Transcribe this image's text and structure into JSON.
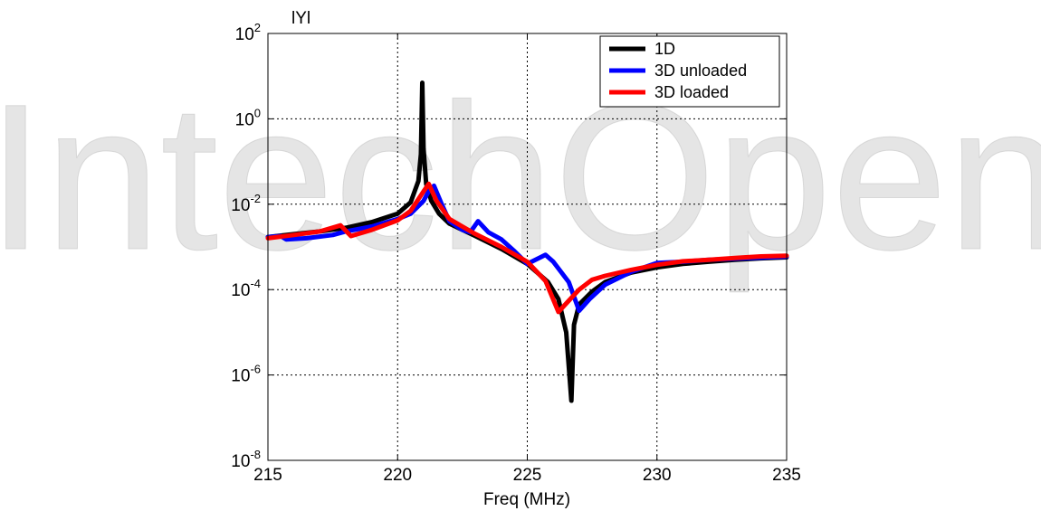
{
  "watermark": {
    "text": "IntechOpen",
    "color": "#cfcfcf"
  },
  "chart_data": {
    "type": "line",
    "xlabel": "Freq (MHz)",
    "ylabel": "lYl",
    "xlim": [
      215,
      235
    ],
    "ylim": [
      1e-08,
      100
    ],
    "y_scale": "log",
    "grid": true,
    "legend_position": "top-right",
    "x_ticks": [
      {
        "value": 215,
        "label": "215"
      },
      {
        "value": 220,
        "label": "220"
      },
      {
        "value": 225,
        "label": "225"
      },
      {
        "value": 230,
        "label": "230"
      },
      {
        "value": 235,
        "label": "235"
      }
    ],
    "y_ticks": [
      {
        "value": 100.0,
        "base": "10",
        "exp": "2"
      },
      {
        "value": 1.0,
        "base": "10",
        "exp": "0"
      },
      {
        "value": 0.01,
        "base": "10",
        "exp": "-2"
      },
      {
        "value": 0.0001,
        "base": "10",
        "exp": "-4"
      },
      {
        "value": 1e-06,
        "base": "10",
        "exp": "-6"
      },
      {
        "value": 1e-08,
        "base": "10",
        "exp": "-8"
      }
    ],
    "series": [
      {
        "name": "1D",
        "color": "#000000",
        "points": [
          [
            215,
            0.0017
          ],
          [
            216,
            0.002
          ],
          [
            217,
            0.0023
          ],
          [
            218,
            0.0028
          ],
          [
            219,
            0.0038
          ],
          [
            220,
            0.006
          ],
          [
            220.5,
            0.011
          ],
          [
            220.8,
            0.035
          ],
          [
            220.9,
            0.15
          ],
          [
            220.95,
            7
          ],
          [
            221.0,
            0.2
          ],
          [
            221.1,
            0.03
          ],
          [
            221.3,
            0.012
          ],
          [
            221.6,
            0.006
          ],
          [
            222,
            0.0035
          ],
          [
            223,
            0.0018
          ],
          [
            224,
            0.0009
          ],
          [
            225,
            0.0004
          ],
          [
            225.8,
            0.00015
          ],
          [
            226.2,
            6e-05
          ],
          [
            226.5,
            1e-05
          ],
          [
            226.7,
            2.5e-07
          ],
          [
            226.8,
            1.5e-05
          ],
          [
            227,
            4.5e-05
          ],
          [
            227.5,
            9e-05
          ],
          [
            228,
            0.00015
          ],
          [
            229,
            0.00025
          ],
          [
            230,
            0.00033
          ],
          [
            231,
            0.0004
          ],
          [
            232,
            0.00045
          ],
          [
            233,
            0.0005
          ],
          [
            234,
            0.00054
          ],
          [
            235,
            0.00057
          ]
        ]
      },
      {
        "name": "3D unloaded",
        "color": "#0000ff",
        "points": [
          [
            215,
            0.0017
          ],
          [
            215.5,
            0.0018
          ],
          [
            215.7,
            0.0015
          ],
          [
            216.5,
            0.0016
          ],
          [
            217.5,
            0.0019
          ],
          [
            218,
            0.0023
          ],
          [
            219,
            0.003
          ],
          [
            220,
            0.0045
          ],
          [
            220.5,
            0.006
          ],
          [
            221,
            0.012
          ],
          [
            221.2,
            0.02
          ],
          [
            221.4,
            0.027
          ],
          [
            221.7,
            0.01
          ],
          [
            222,
            0.004
          ],
          [
            222.5,
            0.0025
          ],
          [
            222.8,
            0.0022
          ],
          [
            223.1,
            0.004
          ],
          [
            223.5,
            0.0022
          ],
          [
            224,
            0.0015
          ],
          [
            224.5,
            0.0008
          ],
          [
            225,
            0.0004
          ],
          [
            225.7,
            0.00065
          ],
          [
            226,
            0.00045
          ],
          [
            226.6,
            0.00015
          ],
          [
            227,
            3.2e-05
          ],
          [
            227.4,
            6e-05
          ],
          [
            228,
            0.00013
          ],
          [
            229,
            0.00026
          ],
          [
            230,
            0.00042
          ],
          [
            231,
            0.00045
          ],
          [
            232,
            0.0005
          ],
          [
            233,
            0.00053
          ],
          [
            234,
            0.00056
          ],
          [
            235,
            0.00059
          ]
        ]
      },
      {
        "name": "3D loaded",
        "color": "#ff0000",
        "points": [
          [
            215,
            0.0016
          ],
          [
            216,
            0.0019
          ],
          [
            217,
            0.0023
          ],
          [
            217.8,
            0.0032
          ],
          [
            218.2,
            0.0018
          ],
          [
            219,
            0.0025
          ],
          [
            220,
            0.0042
          ],
          [
            220.5,
            0.007
          ],
          [
            221,
            0.02
          ],
          [
            221.2,
            0.03
          ],
          [
            221.5,
            0.012
          ],
          [
            222,
            0.0045
          ],
          [
            223,
            0.002
          ],
          [
            224,
            0.001
          ],
          [
            225,
            0.00045
          ],
          [
            225.7,
            0.00016
          ],
          [
            226.2,
            3e-05
          ],
          [
            226.6,
            5.5e-05
          ],
          [
            227,
            0.0001
          ],
          [
            227.5,
            0.00017
          ],
          [
            228,
            0.00021
          ],
          [
            229,
            0.00029
          ],
          [
            230,
            0.00038
          ],
          [
            231,
            0.00046
          ],
          [
            232,
            0.0005
          ],
          [
            233,
            0.00055
          ],
          [
            234,
            0.0006
          ],
          [
            235,
            0.00062
          ]
        ]
      }
    ]
  }
}
